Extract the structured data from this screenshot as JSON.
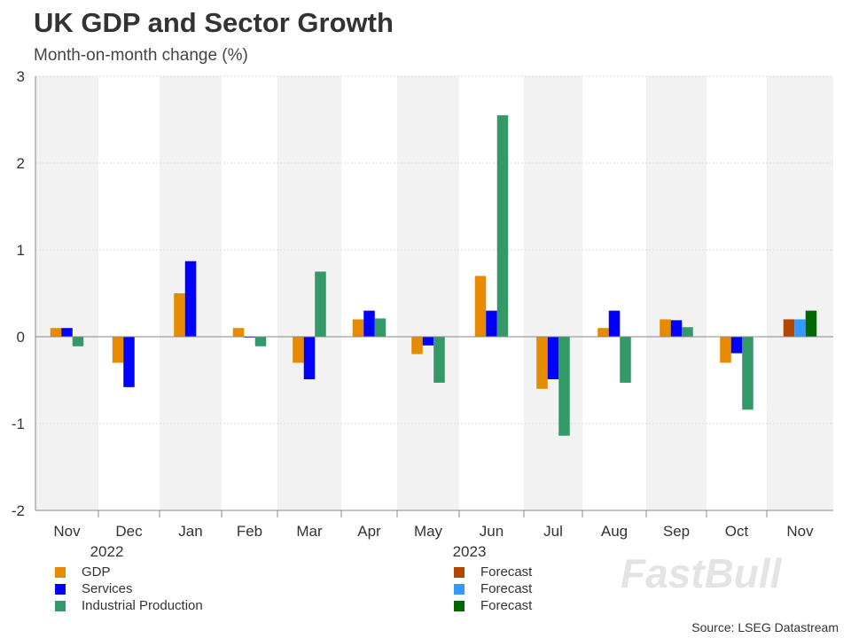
{
  "chart_data": {
    "type": "bar",
    "title": "UK GDP and Sector Growth",
    "subtitle": "Month-on-month change (%)",
    "categories": [
      "Nov",
      "Dec",
      "Jan",
      "Feb",
      "Mar",
      "Apr",
      "May",
      "Jun",
      "Jul",
      "Aug",
      "Sep",
      "Oct",
      "Nov"
    ],
    "year_labels": [
      {
        "label": "2022",
        "category_index": 1
      },
      {
        "label": "2023",
        "category_index": 7
      }
    ],
    "ylim": [
      -2,
      3
    ],
    "yticks": [
      "3",
      "2",
      "1",
      "0",
      "-1",
      "-2"
    ],
    "grid": true,
    "series": [
      {
        "name": "GDP",
        "color": "#E68A00",
        "values": [
          0.1,
          -0.3,
          0.5,
          0.1,
          -0.3,
          0.2,
          -0.2,
          0.7,
          -0.6,
          0.1,
          0.2,
          -0.3,
          null
        ]
      },
      {
        "name": "Services",
        "color": "#0000FF",
        "values": [
          0.1,
          -0.58,
          0.87,
          -0.01,
          -0.49,
          0.3,
          -0.1,
          0.3,
          -0.49,
          0.3,
          0.19,
          -0.19,
          null
        ]
      },
      {
        "name": "Industrial Production",
        "color": "#339966",
        "values": [
          -0.11,
          0,
          0,
          -0.11,
          0.75,
          0.21,
          -0.53,
          2.55,
          -1.14,
          -0.53,
          0.11,
          -0.84,
          null
        ]
      },
      {
        "name": "Forecast",
        "color": "#B34700",
        "values": [
          null,
          null,
          null,
          null,
          null,
          null,
          null,
          null,
          null,
          null,
          null,
          null,
          0.2
        ]
      },
      {
        "name": "Forecast",
        "color": "#3399FF",
        "values": [
          null,
          null,
          null,
          null,
          null,
          null,
          null,
          null,
          null,
          null,
          null,
          null,
          0.2
        ]
      },
      {
        "name": "Forecast",
        "color": "#006600",
        "values": [
          null,
          null,
          null,
          null,
          null,
          null,
          null,
          null,
          null,
          null,
          null,
          null,
          0.3
        ]
      }
    ],
    "legend_placement": "bottom",
    "source": "Source: LSEG Datastream",
    "watermark": "FastBull"
  }
}
